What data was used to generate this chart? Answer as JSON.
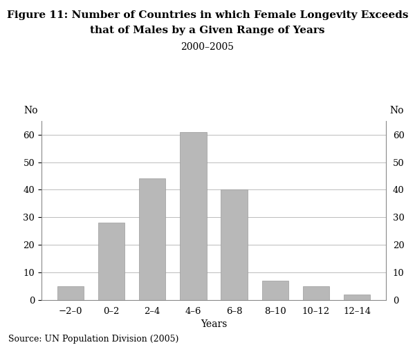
{
  "title_line1": "Figure 11: Number of Countries in which Female Longevity Exceeds",
  "title_line2": "that of Males by a Given Range of Years",
  "subtitle": "2000–2005",
  "categories": [
    "−2–0",
    "0–2",
    "2–4",
    "4–6",
    "6–8",
    "8–10",
    "10–12",
    "12–14"
  ],
  "values": [
    5,
    28,
    44,
    61,
    40,
    7,
    5,
    2
  ],
  "bar_color": "#b8b8b8",
  "bar_edge_color": "#999999",
  "xlabel": "Years",
  "ylabel_left": "No",
  "ylabel_right": "No",
  "ylim": [
    0,
    65
  ],
  "yticks": [
    0,
    10,
    20,
    30,
    40,
    50,
    60
  ],
  "source": "Source: UN Population Division (2005)",
  "background_color": "#ffffff",
  "grid_color": "#bbbbbb",
  "title_fontsize": 11,
  "subtitle_fontsize": 10,
  "axis_label_fontsize": 10,
  "tick_fontsize": 9.5,
  "source_fontsize": 9
}
